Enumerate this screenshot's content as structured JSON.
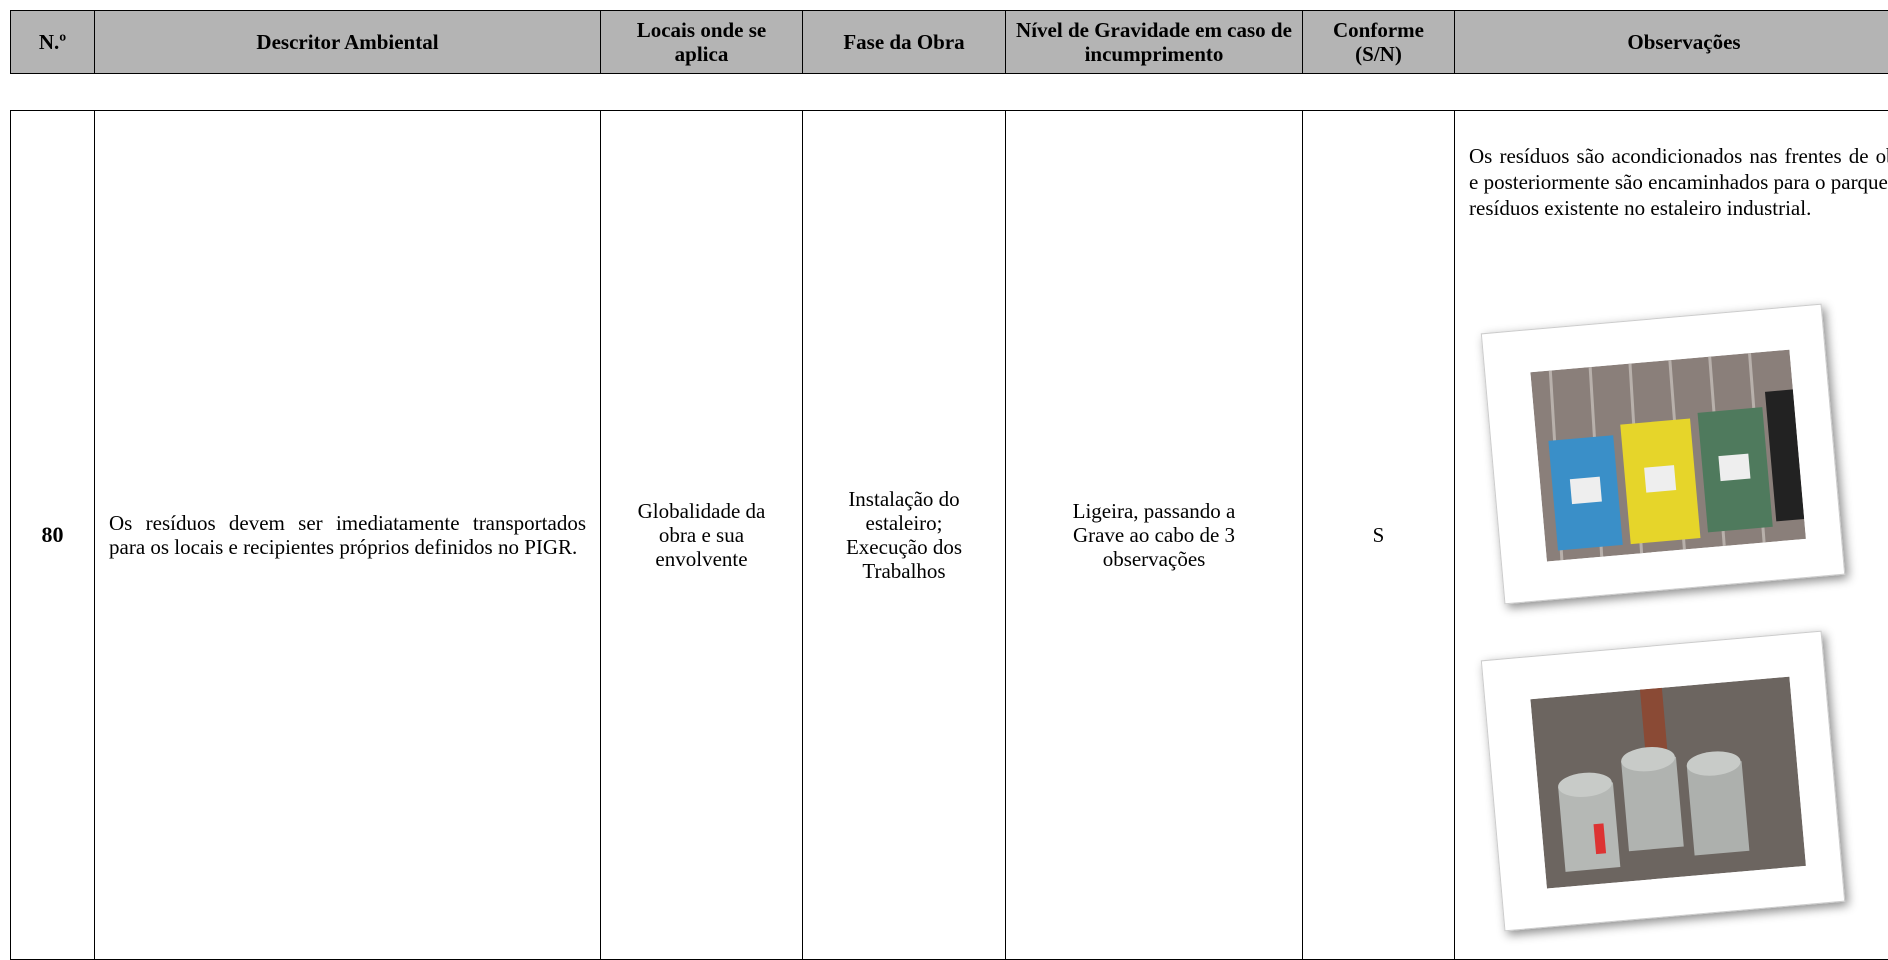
{
  "table": {
    "headers": [
      "N.º",
      "Descritor Ambiental",
      "Locais onde se aplica",
      "Fase da Obra",
      "Nível de Gravidade em caso de incumprimento",
      "Conforme (S/N)",
      "Observações"
    ],
    "rows": [
      [
        "80",
        "Os resíduos devem ser imediatamente transportados para os locais e recipientes próprios definidos no PIGR.",
        "Globalidade da obra e sua envolvente",
        "Instalação do estaleiro; Execução dos Trabalhos",
        "Ligeira, passando a Grave ao cabo de 3 observações",
        "S",
        "Os resíduos são acondicionados nas frentes de obra e posteriormente são encaminhados para o parque de resíduos existente no estaleiro industrial."
      ]
    ]
  }
}
